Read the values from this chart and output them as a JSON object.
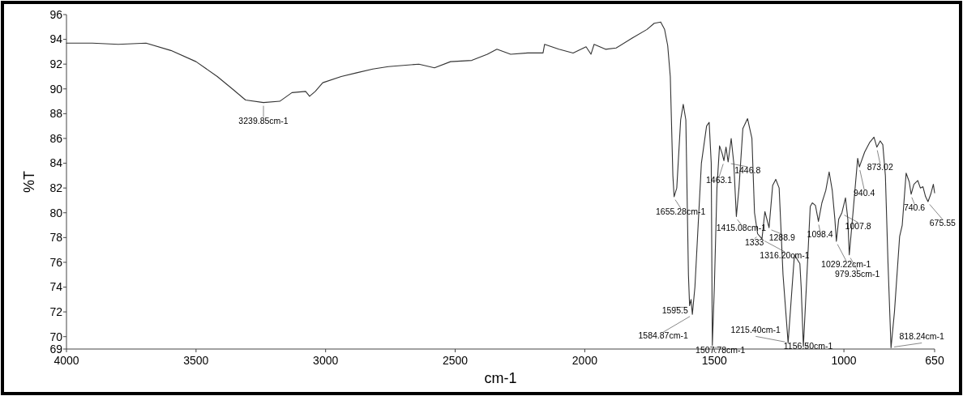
{
  "chart_data": {
    "type": "line",
    "xlabel": "cm-1",
    "ylabel": "%T",
    "xlim": [
      4000,
      650
    ],
    "xticks": [
      4000,
      3500,
      3000,
      2500,
      2000,
      1500,
      1000,
      650
    ],
    "ylim": [
      69,
      96
    ],
    "yticks": [
      69,
      70,
      72,
      74,
      76,
      78,
      80,
      82,
      84,
      86,
      88,
      90,
      92,
      94,
      96
    ],
    "grid": false,
    "marker": "none",
    "line_style": "solid",
    "series": [
      {
        "color": "#333333",
        "x": [
          4000,
          3900,
          3800,
          3693,
          3597,
          3500,
          3418,
          3360,
          3309,
          3239.85,
          3177,
          3130,
          3077,
          3062,
          3040,
          3011,
          2940,
          2880,
          2818,
          2758,
          2700,
          2640,
          2580,
          2518,
          2436,
          2376,
          2339,
          2286,
          2220,
          2161,
          2155,
          2100,
          2045,
          1995,
          1976,
          1964,
          1920,
          1879,
          1817,
          1760,
          1732,
          1707,
          1692,
          1680,
          1670,
          1660,
          1655.28,
          1645,
          1630,
          1620,
          1610,
          1600,
          1595.5,
          1590,
          1584.87,
          1575,
          1550,
          1530,
          1520,
          1512,
          1507.78,
          1500,
          1490,
          1480,
          1470,
          1463.1,
          1455,
          1446.8,
          1435,
          1425,
          1415.08,
          1405,
          1390,
          1372,
          1355,
          1345,
          1333,
          1316.2,
          1305,
          1288.9,
          1275,
          1263,
          1250,
          1235,
          1215.4,
          1200,
          1191,
          1170,
          1165,
          1156.5,
          1145,
          1130,
          1122,
          1110,
          1098.4,
          1085,
          1070,
          1057,
          1045,
          1035,
          1029.22,
          1020,
          1007.8,
          994,
          985,
          979.35,
          965,
          947,
          940.4,
          920,
          900,
          884,
          873.02,
          860,
          850,
          840,
          830,
          818.24,
          805,
          785,
          775,
          760,
          748,
          740.6,
          730,
          715,
          705,
          695,
          685,
          675.55,
          665,
          655,
          650
        ],
        "values": [
          93.7,
          93.7,
          93.6,
          93.7,
          93.1,
          92.2,
          91.0,
          90.0,
          89.1,
          88.9,
          89.0,
          89.7,
          89.8,
          89.4,
          89.8,
          90.5,
          91.0,
          91.3,
          91.6,
          91.8,
          91.9,
          92.0,
          91.7,
          92.2,
          92.3,
          92.8,
          93.2,
          92.8,
          92.9,
          92.9,
          93.6,
          93.2,
          92.9,
          93.4,
          92.8,
          93.6,
          93.2,
          93.3,
          94.1,
          94.8,
          95.3,
          95.4,
          94.8,
          93.5,
          91.0,
          83.0,
          81.3,
          82.0,
          87.5,
          88.75,
          87.5,
          75.0,
          72.5,
          73.0,
          71.8,
          74.0,
          84.0,
          87.0,
          87.3,
          84.0,
          69.3,
          74.0,
          82.0,
          85.4,
          84.8,
          84.2,
          85.3,
          84.1,
          86.0,
          84.0,
          79.7,
          82.0,
          86.8,
          87.6,
          86.0,
          80.0,
          78.3,
          77.9,
          80.1,
          78.8,
          82.2,
          82.7,
          82.0,
          75.0,
          69.5,
          74.0,
          76.6,
          75.9,
          74.0,
          69.2,
          74.0,
          80.5,
          80.8,
          80.6,
          79.3,
          80.8,
          81.8,
          83.3,
          81.8,
          79.5,
          77.7,
          79.5,
          80.0,
          81.2,
          79.5,
          76.6,
          80.0,
          84.4,
          83.7,
          84.9,
          85.7,
          86.1,
          85.3,
          85.8,
          85.5,
          83.0,
          76.0,
          69.1,
          72.0,
          78.1,
          79.0,
          83.2,
          82.5,
          81.5,
          82.3,
          82.6,
          82.0,
          82.1,
          81.3,
          80.9,
          81.5,
          82.3,
          81.6
        ]
      }
    ],
    "annotations": [
      {
        "text": "3239.85cm-1",
        "x": 3239.85,
        "y": 88.9
      },
      {
        "text": "1655.28cm-1",
        "x": 1655.28,
        "y": 81.3
      },
      {
        "text": "1595.5",
        "x": 1595.5,
        "y": 72.5
      },
      {
        "text": "1584.87cm-1",
        "x": 1584.87,
        "y": 71.8
      },
      {
        "text": "1507.78cm-1",
        "x": 1507.78,
        "y": 69.3
      },
      {
        "text": "1463.1",
        "x": 1463.1,
        "y": 84.2
      },
      {
        "text": "1446.8",
        "x": 1446.8,
        "y": 84.1
      },
      {
        "text": "1415.08cm-1",
        "x": 1415.08,
        "y": 79.7
      },
      {
        "text": "1333",
        "x": 1333,
        "y": 78.3
      },
      {
        "text": "1316.20cm-1",
        "x": 1316.2,
        "y": 77.9
      },
      {
        "text": "1288.9",
        "x": 1288.9,
        "y": 78.8
      },
      {
        "text": "1215.40cm-1",
        "x": 1215.4,
        "y": 69.5
      },
      {
        "text": "1156.50cm-1",
        "x": 1156.5,
        "y": 69.2
      },
      {
        "text": "1098.4",
        "x": 1098.4,
        "y": 79.3
      },
      {
        "text": "1007.8",
        "x": 1007.8,
        "y": 80.0
      },
      {
        "text": "1029.22cm-1",
        "x": 1029.22,
        "y": 77.7
      },
      {
        "text": "979.35cm-1",
        "x": 979.35,
        "y": 76.6
      },
      {
        "text": "940.4",
        "x": 940.4,
        "y": 83.7
      },
      {
        "text": "873.02",
        "x": 873.02,
        "y": 85.3
      },
      {
        "text": "818.24cm-1",
        "x": 818.24,
        "y": 69.1
      },
      {
        "text": "740.6",
        "x": 740.6,
        "y": 81.5
      },
      {
        "text": "675.55",
        "x": 675.55,
        "y": 80.9
      }
    ]
  }
}
